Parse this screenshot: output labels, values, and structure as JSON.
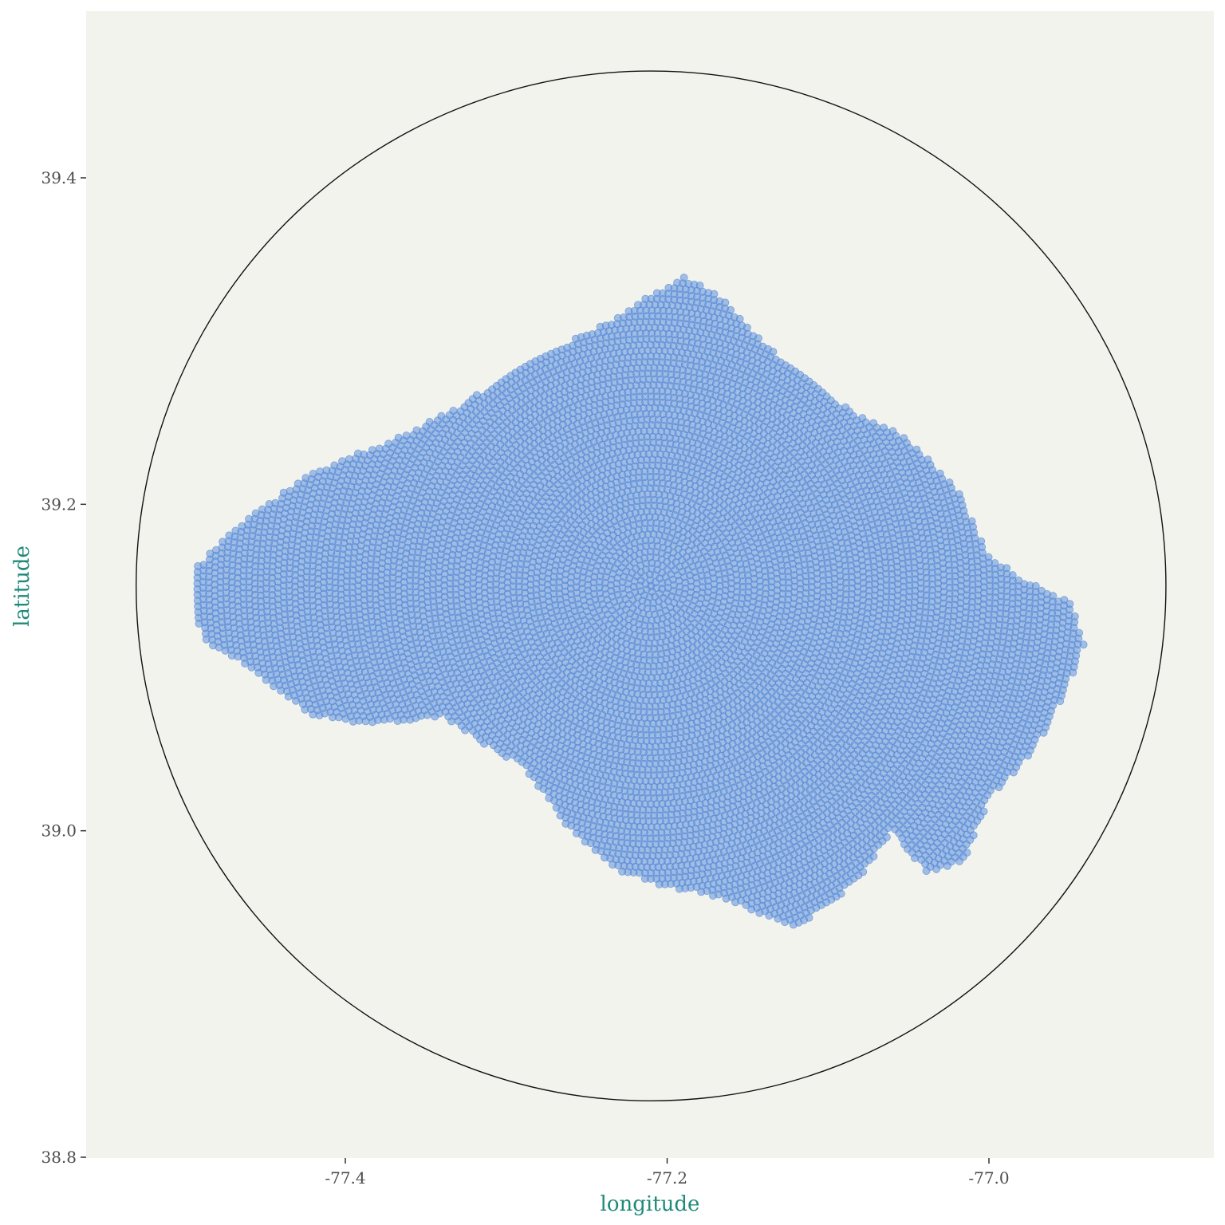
{
  "chart_data": {
    "type": "scatter",
    "title": "",
    "xlabel": "longitude",
    "ylabel": "latitude",
    "xlim": [
      -77.5,
      -76.85
    ],
    "ylim": [
      38.8,
      39.5
    ],
    "x_ticks": [
      {
        "value": -77.4,
        "label": "-77.4"
      },
      {
        "value": -77.2,
        "label": "-77.2"
      },
      {
        "value": -77.0,
        "label": "-77.0"
      }
    ],
    "y_ticks": [
      {
        "value": 38.8,
        "label": "38.8"
      },
      {
        "value": 39.0,
        "label": "39.0"
      },
      {
        "value": 39.2,
        "label": "39.2"
      },
      {
        "value": 39.4,
        "label": "39.4"
      }
    ],
    "grid": false,
    "legend": "none",
    "colors": {
      "panel": "#f3f3ee",
      "point_fill": "#5b8fdc",
      "point_stroke": "#4a7fd4",
      "circle": "#111111",
      "axis_title": "#1f8a7a",
      "tick_text": "#4d4d4d"
    },
    "reference_circle": {
      "center_lon": -77.21,
      "center_lat": 39.15,
      "radius_deg": 0.32
    },
    "points_description_center": {
      "lon": -77.21,
      "lat": 39.15
    },
    "region_outline_lonlat": [
      [
        -77.495,
        39.13
      ],
      [
        -77.494,
        39.16
      ],
      [
        -77.47,
        39.185
      ],
      [
        -77.42,
        39.22
      ],
      [
        -77.37,
        39.24
      ],
      [
        -77.33,
        39.26
      ],
      [
        -77.28,
        39.29
      ],
      [
        -77.24,
        39.31
      ],
      [
        -77.19,
        39.34
      ],
      [
        -77.17,
        39.33
      ],
      [
        -77.15,
        39.31
      ],
      [
        -77.13,
        39.29
      ],
      [
        -77.09,
        39.26
      ],
      [
        -77.05,
        39.24
      ],
      [
        -77.02,
        39.21
      ],
      [
        -77.0,
        39.17
      ],
      [
        -76.98,
        39.155
      ],
      [
        -76.95,
        39.14
      ],
      [
        -76.94,
        39.115
      ],
      [
        -76.95,
        39.09
      ],
      [
        -76.965,
        39.06
      ],
      [
        -76.98,
        39.04
      ],
      [
        -77.0,
        39.02
      ],
      [
        -77.015,
        38.98
      ],
      [
        -77.04,
        38.975
      ],
      [
        -77.06,
        39.0
      ],
      [
        -77.08,
        38.97
      ],
      [
        -77.12,
        38.94
      ],
      [
        -77.145,
        38.95
      ],
      [
        -77.17,
        38.96
      ],
      [
        -77.2,
        38.965
      ],
      [
        -77.23,
        38.975
      ],
      [
        -77.26,
        39.0
      ],
      [
        -77.29,
        39.04
      ],
      [
        -77.31,
        39.05
      ],
      [
        -77.34,
        39.07
      ],
      [
        -77.38,
        39.065
      ],
      [
        -77.42,
        39.07
      ],
      [
        -77.46,
        39.1
      ],
      [
        -77.485,
        39.115
      ]
    ]
  }
}
